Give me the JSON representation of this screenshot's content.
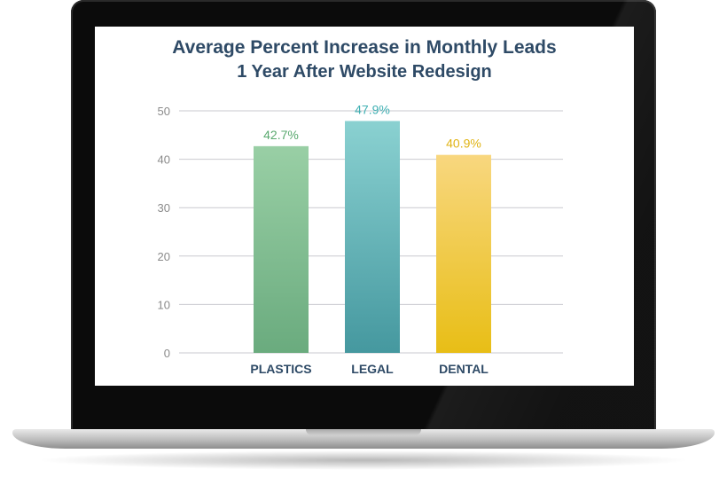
{
  "chart_data": {
    "type": "bar",
    "title": "Average Percent Increase in Monthly Leads",
    "subtitle": "1 Year After Website Redesign",
    "categories": [
      "PLASTICS",
      "LEGAL",
      "DENTAL"
    ],
    "values": [
      42.7,
      47.9,
      40.9
    ],
    "value_labels": [
      "42.7%",
      "47.9%",
      "40.9%"
    ],
    "ylim": [
      0,
      50
    ],
    "yticks": [
      0,
      10,
      20,
      30,
      40,
      50
    ],
    "grid": true,
    "colors": {
      "PLASTICS": [
        "#99cfa5",
        "#6aab7e"
      ],
      "LEGAL": [
        "#8ad1d1",
        "#45989f"
      ],
      "DENTAL": [
        "#f8d77f",
        "#e8be16"
      ]
    },
    "label_colors": [
      "#5aa96f",
      "#3fb0b3",
      "#e0b313"
    ],
    "tick_color": "#8a8a8a",
    "category_color": "#2e4a66"
  }
}
